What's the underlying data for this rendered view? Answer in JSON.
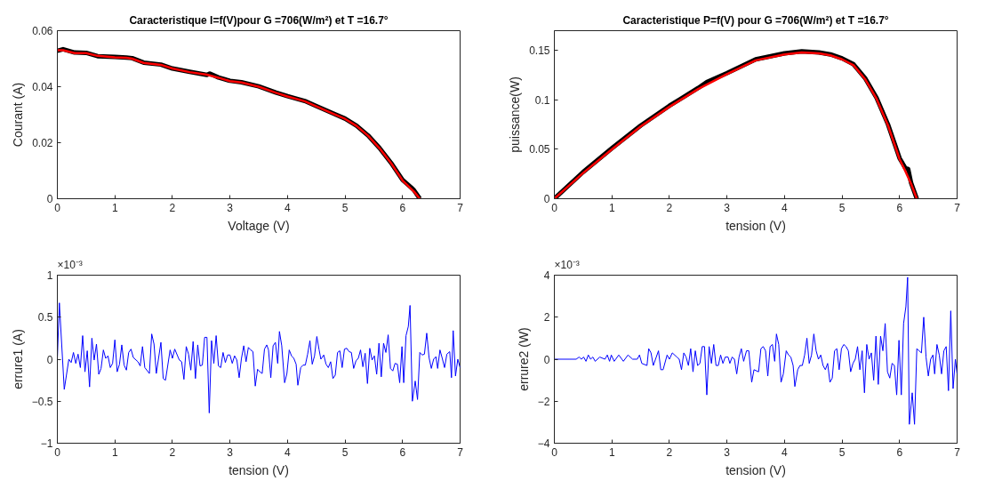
{
  "chart_data": [
    {
      "type": "line",
      "title": "Caracteristique I=f(V)pour G =706(W/m²) et T =16.7°",
      "xlabel": "Voltage (V)",
      "ylabel": "Courant (A)",
      "xlim": [
        0,
        7
      ],
      "ylim": [
        0,
        0.06
      ],
      "xticks": [
        0,
        1,
        2,
        3,
        4,
        5,
        6,
        7
      ],
      "yticks": [
        0,
        0.02,
        0.04,
        0.06
      ],
      "series": [
        {
          "color": "#000000",
          "x": [
            0,
            0.1,
            0.3,
            0.5,
            0.7,
            1.0,
            1.2,
            1.3,
            1.5,
            1.8,
            2.0,
            2.3,
            2.6,
            2.65,
            2.8,
            3.0,
            3.2,
            3.5,
            3.8,
            4.0,
            4.3,
            4.5,
            4.8,
            5.0,
            5.2,
            5.4,
            5.6,
            5.8,
            6.0,
            6.15,
            6.2,
            6.3
          ],
          "values": [
            0.0528,
            0.0534,
            0.0522,
            0.0521,
            0.0509,
            0.0506,
            0.0504,
            0.0502,
            0.0486,
            0.0479,
            0.0465,
            0.0453,
            0.0442,
            0.0447,
            0.0433,
            0.0421,
            0.0416,
            0.0401,
            0.0379,
            0.0366,
            0.0349,
            0.0331,
            0.0304,
            0.0286,
            0.0261,
            0.0226,
            0.0181,
            0.0128,
            0.0067,
            0.004,
            0.003,
            0.0
          ]
        },
        {
          "color": "#ff0000",
          "x": [
            0,
            0.1,
            0.3,
            0.5,
            0.7,
            1.0,
            1.2,
            1.3,
            1.5,
            1.8,
            2.0,
            2.3,
            2.6,
            2.8,
            3.0,
            3.2,
            3.5,
            3.8,
            4.0,
            4.3,
            4.5,
            4.8,
            5.0,
            5.2,
            5.4,
            5.6,
            5.8,
            6.0,
            6.2,
            6.3
          ],
          "values": [
            0.053,
            0.053,
            0.052,
            0.052,
            0.051,
            0.0505,
            0.0503,
            0.05,
            0.0485,
            0.0478,
            0.0465,
            0.0452,
            0.0443,
            0.0432,
            0.042,
            0.0415,
            0.04,
            0.0378,
            0.0365,
            0.0348,
            0.033,
            0.0303,
            0.0285,
            0.026,
            0.0225,
            0.018,
            0.0127,
            0.0065,
            0.0025,
            0.0
          ]
        }
      ]
    },
    {
      "type": "line",
      "title": "Caracteristique P=f(V) pour G =706(W/m²) et T =16.7°",
      "xlabel": "tension (V)",
      "ylabel": "puissance(W)",
      "xlim": [
        0,
        7
      ],
      "ylim": [
        0,
        0.17
      ],
      "xticks": [
        0,
        1,
        2,
        3,
        4,
        5,
        6,
        7
      ],
      "yticks": [
        0,
        0.05,
        0.1,
        0.15
      ],
      "series": [
        {
          "color": "#000000",
          "x": [
            0,
            0.5,
            1.0,
            1.5,
            2.0,
            2.5,
            2.65,
            3.0,
            3.5,
            4.0,
            4.3,
            4.6,
            4.8,
            5.0,
            5.2,
            5.4,
            5.6,
            5.8,
            6.0,
            6.1,
            6.15,
            6.2,
            6.3
          ],
          "values": [
            0.0,
            0.027,
            0.051,
            0.074,
            0.094,
            0.112,
            0.118,
            0.127,
            0.141,
            0.147,
            0.149,
            0.148,
            0.146,
            0.142,
            0.136,
            0.122,
            0.102,
            0.075,
            0.041,
            0.031,
            0.03,
            0.016,
            0.0
          ]
        },
        {
          "color": "#ff0000",
          "x": [
            0,
            0.5,
            1.0,
            1.5,
            2.0,
            2.5,
            3.0,
            3.5,
            4.0,
            4.3,
            4.6,
            4.8,
            5.0,
            5.2,
            5.4,
            5.6,
            5.8,
            6.0,
            6.1,
            6.2,
            6.3
          ],
          "values": [
            0.0,
            0.026,
            0.05,
            0.073,
            0.093,
            0.111,
            0.126,
            0.14,
            0.146,
            0.148,
            0.147,
            0.145,
            0.141,
            0.135,
            0.121,
            0.101,
            0.074,
            0.04,
            0.028,
            0.015,
            0.0
          ]
        }
      ]
    },
    {
      "type": "line",
      "xlabel": "tension (V)",
      "ylabel": "errure1 (A)",
      "annotations": [
        "×10⁻³"
      ],
      "xlim": [
        0,
        7
      ],
      "ylim": [
        -1,
        1
      ],
      "xticks": [
        0,
        1,
        2,
        3,
        4,
        5,
        6,
        7
      ],
      "yticks": [
        -1,
        -0.5,
        0,
        0.5,
        1
      ],
      "series": [
        {
          "color": "#0000ff",
          "x": [
            0,
            0.035,
            0.12,
            0.2,
            0.24,
            0.28,
            0.32,
            0.36,
            0.4,
            0.44,
            0.48,
            0.52,
            0.56,
            0.6,
            0.64,
            0.68,
            0.72,
            0.76,
            0.8,
            0.84,
            0.88,
            0.92,
            0.96,
            1.0,
            1.04,
            1.08,
            1.12,
            1.16,
            1.2,
            1.24,
            1.28,
            1.32,
            1.4,
            1.44,
            1.48,
            1.52,
            1.6,
            1.64,
            1.68,
            1.72,
            1.8,
            1.84,
            1.88,
            1.96,
            2.0,
            2.04,
            2.12,
            2.16,
            2.2,
            2.24,
            2.28,
            2.32,
            2.36,
            2.4,
            2.44,
            2.48,
            2.52,
            2.56,
            2.6,
            2.64,
            2.68,
            2.72,
            2.76,
            2.8,
            2.84,
            2.88,
            2.92,
            2.96,
            3.0,
            3.04,
            3.08,
            3.12,
            3.16,
            3.2,
            3.24,
            3.28,
            3.32,
            3.36,
            3.4,
            3.44,
            3.48,
            3.52,
            3.56,
            3.6,
            3.64,
            3.67,
            3.71,
            3.75,
            3.79,
            3.83,
            3.86,
            3.9,
            3.95,
            3.99,
            4.03,
            4.07,
            4.11,
            4.15,
            4.18,
            4.23,
            4.27,
            4.31,
            4.35,
            4.39,
            4.43,
            4.47,
            4.51,
            4.55,
            4.58,
            4.63,
            4.67,
            4.71,
            4.75,
            4.79,
            4.83,
            4.87,
            4.91,
            4.95,
            4.99,
            5.03,
            5.07,
            5.11,
            5.15,
            5.19,
            5.23,
            5.27,
            5.31,
            5.35,
            5.39,
            5.43,
            5.47,
            5.51,
            5.55,
            5.59,
            5.63,
            5.67,
            5.71,
            5.75,
            5.79,
            5.83,
            5.87,
            5.91,
            5.95,
            5.99,
            6.02,
            6.06,
            6.1,
            6.13,
            6.17,
            6.22,
            6.26,
            6.3,
            6.34,
            6.38,
            6.42,
            6.46,
            6.5,
            6.54,
            6.58,
            6.61,
            6.65,
            6.69,
            6.73,
            6.77,
            6.82,
            6.85,
            6.88,
            6.92,
            6.96,
            7.0
          ],
          "values": [
            0,
            0.67,
            -0.36,
            0,
            -0.04,
            0.08,
            -0.05,
            0.06,
            -0.1,
            0.28,
            -0.15,
            0.1,
            -0.33,
            0.25,
            -0.01,
            0.18,
            -0.18,
            -0.11,
            0.11,
            0.01,
            0.04,
            -0.1,
            -0.05,
            0.23,
            -0.15,
            -0.06,
            0.17,
            -0.07,
            -0.13,
            0.08,
            0.12,
            0.02,
            -0.03,
            -0.08,
            0.15,
            -0.1,
            -0.17,
            0.3,
            0.18,
            -0.17,
            0.2,
            -0.23,
            -0.25,
            0.11,
            0.01,
            0.12,
            -0.01,
            -0.03,
            -0.24,
            0.15,
            0.06,
            -0.13,
            0.21,
            -0.23,
            0.17,
            -0.08,
            -0.07,
            0.26,
            0.26,
            -0.64,
            0.22,
            -0.05,
            0.28,
            -0.08,
            -0.1,
            0.08,
            -0.04,
            0.05,
            0.05,
            -0.05,
            0.04,
            -0.01,
            -0.22,
            0.01,
            0.16,
            -0.03,
            0.14,
            0.11,
            0.09,
            -0.32,
            -0.12,
            -0.15,
            -0.17,
            0.12,
            0.17,
            0.11,
            -0.22,
            0.16,
            0.2,
            -0.05,
            0.33,
            0.16,
            -0.28,
            -0.17,
            0.11,
            0.04,
            0.01,
            -0.06,
            -0.31,
            -0.1,
            -0.07,
            -0.07,
            0.06,
            0.22,
            -0.06,
            0.04,
            0.27,
            0.11,
            0,
            0.05,
            -0.06,
            -0.1,
            -0.03,
            -0.23,
            -0.19,
            0.08,
            0.1,
            -0.1,
            0.12,
            0.13,
            0.09,
            0.08,
            -0.11,
            -0.02,
            0.01,
            0.11,
            -0.09,
            0.07,
            -0.29,
            0.13,
            -0.01,
            0.04,
            -0.18,
            0.19,
            -0.21,
            0.19,
            0.08,
            0.29,
            -0.11,
            -0.14,
            -0.05,
            -0.06,
            -0.28,
            0.15,
            -0.28,
            0.28,
            0.39,
            0.64,
            -0.5,
            -0.26,
            -0.48,
            0.08,
            0.05,
            0.06,
            0.31,
            0.02,
            -0.11,
            0,
            0.03,
            -0.11,
            0.11,
            0.01,
            -0.1,
            0.06,
            0.09,
            -0.22,
            0.34,
            -0.2,
            0,
            -0.1
          ]
        }
      ]
    },
    {
      "type": "line",
      "xlabel": "tension (V)",
      "ylabel": "errure2 (W)",
      "annotations": [
        "×10⁻³"
      ],
      "xlim": [
        0,
        7
      ],
      "ylim": [
        -4,
        4
      ],
      "xticks": [
        0,
        1,
        2,
        3,
        4,
        5,
        6,
        7
      ],
      "yticks": [
        -4,
        -2,
        0,
        2,
        4
      ],
      "series": [
        {
          "color": "#0000ff",
          "x": [
            0,
            0.07,
            0.27,
            0.38,
            0.43,
            0.47,
            0.51,
            0.55,
            0.59,
            0.63,
            0.67,
            0.71,
            0.79,
            0.88,
            0.92,
            0.96,
            0.99,
            1.04,
            1.12,
            1.2,
            1.28,
            1.36,
            1.44,
            1.48,
            1.52,
            1.61,
            1.64,
            1.68,
            1.72,
            1.81,
            1.85,
            1.89,
            1.96,
            2.0,
            2.05,
            2.13,
            2.17,
            2.21,
            2.25,
            2.29,
            2.33,
            2.37,
            2.41,
            2.45,
            2.49,
            2.53,
            2.57,
            2.61,
            2.65,
            2.69,
            2.73,
            2.77,
            2.81,
            2.85,
            2.89,
            2.93,
            2.97,
            3.02,
            3.05,
            3.09,
            3.13,
            3.17,
            3.21,
            3.25,
            3.29,
            3.34,
            3.38,
            3.43,
            3.47,
            3.55,
            3.59,
            3.63,
            3.67,
            3.71,
            3.75,
            3.79,
            3.83,
            3.86,
            3.9,
            3.94,
            3.98,
            4.03,
            4.07,
            4.11,
            4.15,
            4.18,
            4.23,
            4.27,
            4.31,
            4.35,
            4.39,
            4.43,
            4.47,
            4.51,
            4.55,
            4.59,
            4.63,
            4.67,
            4.71,
            4.75,
            4.79,
            4.83,
            4.87,
            4.91,
            4.95,
            4.99,
            5.03,
            5.07,
            5.11,
            5.15,
            5.19,
            5.23,
            5.27,
            5.31,
            5.35,
            5.39,
            5.43,
            5.47,
            5.51,
            5.55,
            5.59,
            5.63,
            5.67,
            5.71,
            5.75,
            5.79,
            5.83,
            5.87,
            5.91,
            5.95,
            5.99,
            6.03,
            6.07,
            6.11,
            6.14,
            6.17,
            6.22,
            6.26,
            6.3,
            6.34,
            6.38,
            6.42,
            6.46,
            6.5,
            6.54,
            6.58,
            6.61,
            6.65,
            6.69,
            6.73,
            6.77,
            6.81,
            6.85,
            6.89,
            6.93,
            6.97,
            7.0
          ],
          "values": [
            0,
            0,
            0,
            0,
            0.1,
            0,
            0.1,
            -0.1,
            0.2,
            0,
            0.1,
            -0.1,
            0.1,
            0,
            0.2,
            -0.1,
            0.2,
            -0.1,
            0.2,
            -0.1,
            0.2,
            0,
            0,
            0.2,
            -0.2,
            -0.3,
            0.5,
            0.3,
            -0.3,
            0.4,
            -0.5,
            -0.5,
            0.2,
            0,
            0.3,
            0.1,
            0,
            -0.5,
            0.3,
            0.1,
            -0.3,
            0.5,
            -0.6,
            0.4,
            -0.3,
            -0.2,
            0.6,
            0.6,
            -1.7,
            0.6,
            -0.2,
            0.7,
            -0.3,
            -0.3,
            0.2,
            -0.2,
            0.1,
            0.1,
            -0.2,
            0.1,
            0,
            -0.7,
            0.1,
            0.5,
            -0.1,
            0.4,
            0.4,
            -1.1,
            -0.5,
            -0.6,
            0.5,
            0.6,
            0.4,
            -0.8,
            0.6,
            0.7,
            -0.1,
            1.2,
            0.7,
            -1.1,
            -0.7,
            0.4,
            0.2,
            0.1,
            -0.3,
            -1.3,
            -0.5,
            -0.3,
            -0.3,
            0.2,
            1,
            -0.2,
            0.2,
            1.2,
            0.4,
            0,
            0.2,
            -0.3,
            -0.5,
            -0.2,
            -1.1,
            -0.9,
            0.4,
            0.5,
            -0.5,
            0.5,
            0.7,
            0.6,
            0.4,
            -0.6,
            -0.2,
            0,
            0.6,
            -0.5,
            0.4,
            -1.6,
            0.7,
            0,
            0.3,
            -1,
            1.1,
            -1.2,
            1.1,
            0.4,
            1.7,
            -0.6,
            -0.9,
            -0.2,
            -0.3,
            -1.7,
            0.9,
            -1.7,
            1.7,
            2.5,
            3.9,
            -3.1,
            -1.6,
            -3.1,
            0.5,
            0.4,
            0.3,
            2,
            0.1,
            -0.8,
            0,
            0.2,
            -0.7,
            0.7,
            0.2,
            -0.7,
            0.4,
            0.6,
            -1.5,
            2.3,
            -1.4,
            0,
            -0.7
          ]
        }
      ]
    }
  ]
}
